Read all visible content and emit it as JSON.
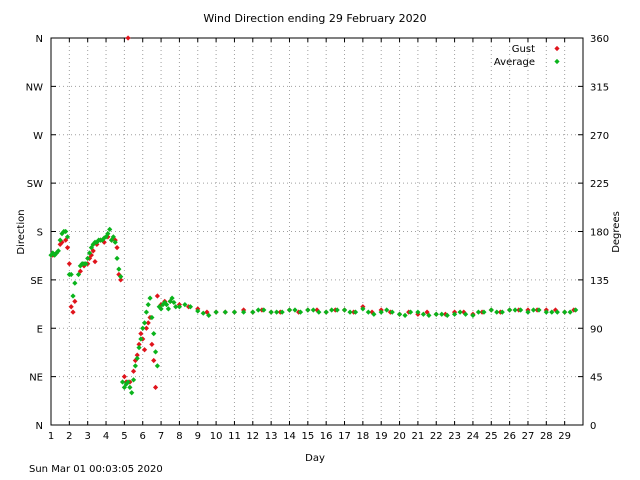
{
  "footer": {
    "timestamp": "Sun Mar 01 00:03:05 2020"
  },
  "chart_data": {
    "type": "scatter",
    "title": "Wind Direction ending 29 February 2020",
    "xlabel": "Day",
    "ylabel_left": "Direction",
    "ylabel_right": "Degrees",
    "xlim": [
      1,
      30
    ],
    "ylim": [
      0,
      360
    ],
    "x_ticks": [
      1,
      2,
      3,
      4,
      5,
      6,
      7,
      8,
      9,
      10,
      11,
      12,
      13,
      14,
      15,
      16,
      17,
      18,
      19,
      20,
      21,
      22,
      23,
      24,
      25,
      26,
      27,
      28,
      29
    ],
    "y_ticks_left": [
      {
        "value": 0,
        "label": "N"
      },
      {
        "value": 45,
        "label": "NE"
      },
      {
        "value": 90,
        "label": "E"
      },
      {
        "value": 135,
        "label": "SE"
      },
      {
        "value": 180,
        "label": "S"
      },
      {
        "value": 225,
        "label": "SW"
      },
      {
        "value": 270,
        "label": "W"
      },
      {
        "value": 315,
        "label": "NW"
      },
      {
        "value": 360,
        "label": "N"
      }
    ],
    "y_ticks_right": [
      0,
      45,
      90,
      135,
      180,
      225,
      270,
      315,
      360
    ],
    "grid": true,
    "legend_position": "top-right",
    "series": [
      {
        "name": "Gust",
        "color": "#e0141c",
        "points": [
          [
            1.1,
            158
          ],
          [
            1.3,
            160
          ],
          [
            1.5,
            168
          ],
          [
            1.6,
            170
          ],
          [
            1.8,
            172
          ],
          [
            1.9,
            165
          ],
          [
            2.0,
            150
          ],
          [
            2.1,
            110
          ],
          [
            2.2,
            105
          ],
          [
            2.3,
            115
          ],
          [
            2.6,
            143
          ],
          [
            2.8,
            148
          ],
          [
            3.0,
            150
          ],
          [
            3.1,
            155
          ],
          [
            3.2,
            158
          ],
          [
            3.3,
            162
          ],
          [
            3.4,
            152
          ],
          [
            3.5,
            168
          ],
          [
            3.7,
            172
          ],
          [
            3.9,
            170
          ],
          [
            4.1,
            175
          ],
          [
            4.3,
            172
          ],
          [
            4.5,
            172
          ],
          [
            4.6,
            165
          ],
          [
            4.7,
            140
          ],
          [
            4.8,
            135
          ],
          [
            5.0,
            45
          ],
          [
            5.1,
            40
          ],
          [
            5.2,
            360
          ],
          [
            5.3,
            40
          ],
          [
            5.5,
            50
          ],
          [
            5.6,
            60
          ],
          [
            5.7,
            65
          ],
          [
            5.8,
            75
          ],
          [
            5.9,
            85
          ],
          [
            6.0,
            80
          ],
          [
            6.1,
            70
          ],
          [
            6.2,
            90
          ],
          [
            6.3,
            95
          ],
          [
            6.4,
            100
          ],
          [
            6.5,
            75
          ],
          [
            6.6,
            60
          ],
          [
            6.7,
            35
          ],
          [
            6.8,
            120
          ],
          [
            7.0,
            112
          ],
          [
            7.2,
            115
          ],
          [
            7.5,
            115
          ],
          [
            8.0,
            112
          ],
          [
            8.5,
            110
          ],
          [
            9.0,
            108
          ],
          [
            9.5,
            105
          ],
          [
            10.0,
            105
          ],
          [
            10.5,
            105
          ],
          [
            11.0,
            105
          ],
          [
            11.5,
            107
          ],
          [
            12.0,
            105
          ],
          [
            12.5,
            107
          ],
          [
            13.0,
            105
          ],
          [
            13.5,
            105
          ],
          [
            14.0,
            107
          ],
          [
            14.5,
            105
          ],
          [
            15.0,
            107
          ],
          [
            15.5,
            107
          ],
          [
            16.0,
            105
          ],
          [
            16.5,
            107
          ],
          [
            17.0,
            107
          ],
          [
            17.5,
            105
          ],
          [
            18.0,
            110
          ],
          [
            18.5,
            105
          ],
          [
            19.0,
            107
          ],
          [
            19.5,
            105
          ],
          [
            20.0,
            103
          ],
          [
            20.5,
            105
          ],
          [
            21.0,
            103
          ],
          [
            21.5,
            105
          ],
          [
            22.0,
            103
          ],
          [
            22.5,
            103
          ],
          [
            23.0,
            105
          ],
          [
            23.5,
            105
          ],
          [
            24.0,
            103
          ],
          [
            24.5,
            105
          ],
          [
            25.0,
            107
          ],
          [
            25.5,
            105
          ],
          [
            26.0,
            107
          ],
          [
            26.5,
            107
          ],
          [
            27.0,
            107
          ],
          [
            27.5,
            107
          ],
          [
            28.0,
            107
          ],
          [
            28.5,
            107
          ],
          [
            29.0,
            105
          ],
          [
            29.5,
            107
          ]
        ]
      },
      {
        "name": "Average",
        "color": "#0ab41c",
        "points": [
          [
            1.0,
            158
          ],
          [
            1.1,
            160
          ],
          [
            1.2,
            158
          ],
          [
            1.3,
            160
          ],
          [
            1.4,
            162
          ],
          [
            1.5,
            172
          ],
          [
            1.6,
            178
          ],
          [
            1.7,
            180
          ],
          [
            1.8,
            180
          ],
          [
            1.9,
            175
          ],
          [
            2.0,
            140
          ],
          [
            2.1,
            140
          ],
          [
            2.2,
            120
          ],
          [
            2.3,
            132
          ],
          [
            2.5,
            140
          ],
          [
            2.6,
            148
          ],
          [
            2.7,
            150
          ],
          [
            2.8,
            150
          ],
          [
            2.9,
            150
          ],
          [
            3.0,
            155
          ],
          [
            3.1,
            160
          ],
          [
            3.2,
            165
          ],
          [
            3.3,
            168
          ],
          [
            3.4,
            170
          ],
          [
            3.5,
            170
          ],
          [
            3.6,
            172
          ],
          [
            3.7,
            172
          ],
          [
            3.8,
            172
          ],
          [
            3.9,
            174
          ],
          [
            4.0,
            175
          ],
          [
            4.1,
            178
          ],
          [
            4.2,
            182
          ],
          [
            4.3,
            172
          ],
          [
            4.4,
            175
          ],
          [
            4.5,
            170
          ],
          [
            4.6,
            155
          ],
          [
            4.7,
            145
          ],
          [
            4.8,
            138
          ],
          [
            4.9,
            40
          ],
          [
            5.0,
            35
          ],
          [
            5.1,
            38
          ],
          [
            5.2,
            40
          ],
          [
            5.3,
            35
          ],
          [
            5.4,
            30
          ],
          [
            5.5,
            42
          ],
          [
            5.6,
            55
          ],
          [
            5.7,
            62
          ],
          [
            5.8,
            72
          ],
          [
            5.9,
            80
          ],
          [
            6.0,
            90
          ],
          [
            6.1,
            95
          ],
          [
            6.2,
            105
          ],
          [
            6.3,
            112
          ],
          [
            6.4,
            118
          ],
          [
            6.5,
            100
          ],
          [
            6.6,
            85
          ],
          [
            6.7,
            68
          ],
          [
            6.8,
            55
          ],
          [
            6.9,
            110
          ],
          [
            7.0,
            108
          ],
          [
            7.1,
            112
          ],
          [
            7.2,
            114
          ],
          [
            7.3,
            112
          ],
          [
            7.4,
            108
          ],
          [
            7.5,
            115
          ],
          [
            7.6,
            118
          ],
          [
            7.7,
            114
          ],
          [
            7.8,
            110
          ],
          [
            8.0,
            110
          ],
          [
            8.3,
            112
          ],
          [
            8.6,
            110
          ],
          [
            9.0,
            106
          ],
          [
            9.3,
            104
          ],
          [
            9.6,
            102
          ],
          [
            10.0,
            105
          ],
          [
            10.5,
            105
          ],
          [
            11.0,
            105
          ],
          [
            11.5,
            105
          ],
          [
            12.0,
            105
          ],
          [
            12.3,
            107
          ],
          [
            12.6,
            107
          ],
          [
            13.0,
            105
          ],
          [
            13.3,
            105
          ],
          [
            13.6,
            105
          ],
          [
            14.0,
            107
          ],
          [
            14.3,
            107
          ],
          [
            14.6,
            105
          ],
          [
            15.0,
            107
          ],
          [
            15.3,
            107
          ],
          [
            15.6,
            105
          ],
          [
            16.0,
            105
          ],
          [
            16.3,
            107
          ],
          [
            16.6,
            107
          ],
          [
            17.0,
            107
          ],
          [
            17.3,
            105
          ],
          [
            17.6,
            105
          ],
          [
            18.0,
            108
          ],
          [
            18.3,
            105
          ],
          [
            18.6,
            103
          ],
          [
            19.0,
            105
          ],
          [
            19.3,
            107
          ],
          [
            19.6,
            105
          ],
          [
            20.0,
            103
          ],
          [
            20.3,
            102
          ],
          [
            20.6,
            105
          ],
          [
            21.0,
            105
          ],
          [
            21.3,
            103
          ],
          [
            21.6,
            102
          ],
          [
            22.0,
            103
          ],
          [
            22.3,
            103
          ],
          [
            22.6,
            102
          ],
          [
            23.0,
            103
          ],
          [
            23.3,
            105
          ],
          [
            23.6,
            103
          ],
          [
            24.0,
            102
          ],
          [
            24.3,
            105
          ],
          [
            24.6,
            105
          ],
          [
            25.0,
            107
          ],
          [
            25.3,
            105
          ],
          [
            25.6,
            105
          ],
          [
            26.0,
            107
          ],
          [
            26.3,
            107
          ],
          [
            26.6,
            107
          ],
          [
            27.0,
            105
          ],
          [
            27.3,
            107
          ],
          [
            27.6,
            107
          ],
          [
            28.0,
            105
          ],
          [
            28.3,
            105
          ],
          [
            28.6,
            105
          ],
          [
            29.0,
            105
          ],
          [
            29.3,
            105
          ],
          [
            29.6,
            107
          ]
        ]
      }
    ]
  }
}
